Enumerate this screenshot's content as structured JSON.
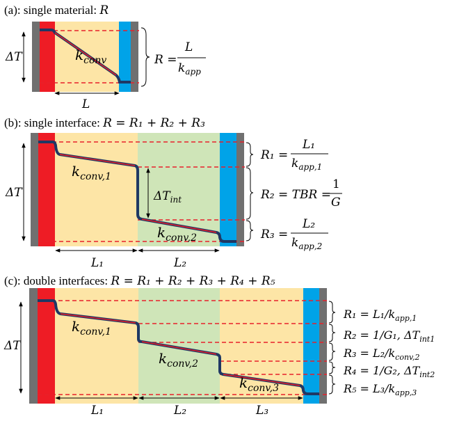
{
  "panels": {
    "a": {
      "caption": "(a): single material: R",
      "caption_prefix": "(a): single material: ",
      "caption_var": "R",
      "delta_t": "ΔT",
      "k_label": {
        "base": "k",
        "sub": "conv"
      },
      "length": "L",
      "formula": {
        "lhs": "R =",
        "num": "L",
        "den_base": "k",
        "den_sub": "app"
      }
    },
    "b": {
      "caption_prefix": "(b): single interface: ",
      "caption_eq": "R = R₁ + R₂ + R₃",
      "delta_t": "ΔT",
      "delta_t_int": {
        "base": "ΔT",
        "sub": "int"
      },
      "k1": {
        "base": "k",
        "sub": "conv,1"
      },
      "k2": {
        "base": "k",
        "sub": "conv,2"
      },
      "lengths": [
        "L₁",
        "L₂"
      ],
      "r1": {
        "lhs": "R₁ =",
        "num": "L₁",
        "den_base": "k",
        "den_sub": "app,1"
      },
      "r2": {
        "lhs": "R₂ = TBR =",
        "num": "1",
        "den": "G"
      },
      "r3": {
        "lhs": "R₃ =",
        "num": "L₂",
        "den_base": "k",
        "den_sub": "app,2"
      }
    },
    "c": {
      "caption_prefix": "(c): double interfaces: ",
      "caption_eq": "R = R₁ + R₂ + R₃ + R₄ + R₅",
      "delta_t": "ΔT",
      "k1": {
        "base": "k",
        "sub": "conv,1"
      },
      "k2": {
        "base": "k",
        "sub": "conv,2"
      },
      "k3": {
        "base": "k",
        "sub": "conv,3"
      },
      "lengths": [
        "L₁",
        "L₂",
        "L₃"
      ],
      "r1": {
        "text": "R₁ = L₁/k",
        "sub": "app,1"
      },
      "r2": {
        "text": "R₂ = 1/G₁,  ΔT",
        "sub": "int1"
      },
      "r3": {
        "text": "R₃ = L₂/k",
        "sub": "conv,2"
      },
      "r4": {
        "text": "R₄ = 1/G₂,  ΔT",
        "sub": "int2"
      },
      "r5": {
        "text": "R₅ = L₃/k",
        "sub": "app,3"
      }
    }
  },
  "colors": {
    "hot": "#ee1c25",
    "cold": "#00a3e8",
    "wall": "#707070",
    "material_yellow": "#fde5a6",
    "material_green": "#cfe5b8",
    "dash": "#e8202a",
    "profile": "#1f3864"
  }
}
